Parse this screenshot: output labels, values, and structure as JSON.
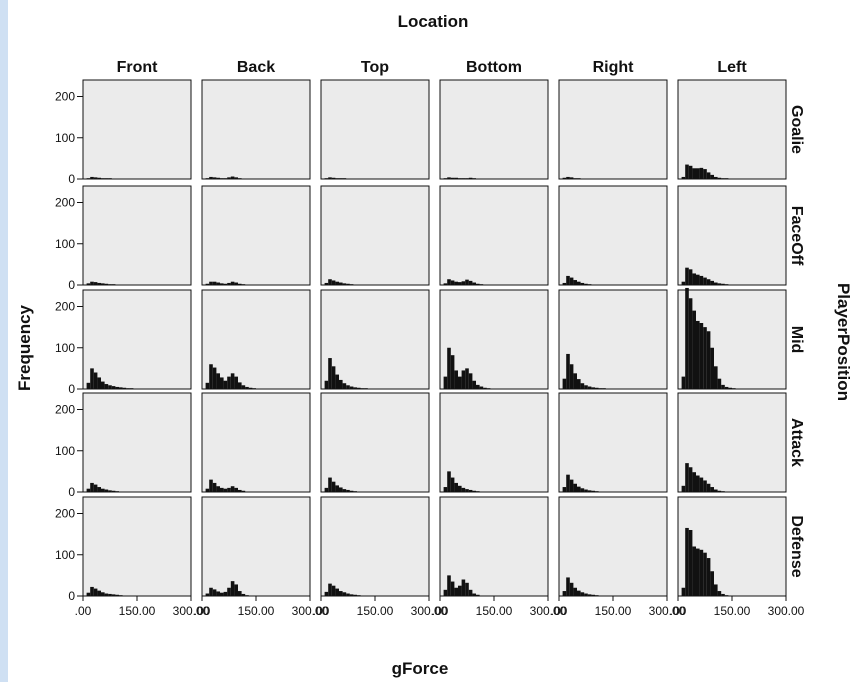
{
  "chart_data": {
    "type": "bar",
    "title": "Location",
    "xlabel": "gForce",
    "ylabel": "Frequency",
    "row_title": "PlayerPosition",
    "columns": [
      "Front",
      "Back",
      "Top",
      "Bottom",
      "Right",
      "Left"
    ],
    "rows": [
      "Goalie",
      "FaceOff",
      "Mid",
      "Attack",
      "Defense"
    ],
    "xlim": [
      0,
      300
    ],
    "ylim": [
      0,
      240
    ],
    "x_tick_labels": [
      ".00",
      "150.00",
      "300.00"
    ],
    "y_tick_labels": [
      "0",
      "100",
      "200"
    ],
    "grid": false,
    "bin_centers": [
      5,
      15,
      25,
      35,
      45,
      55,
      65,
      75,
      85,
      95,
      105,
      115,
      125,
      135,
      145,
      155,
      165,
      175,
      185,
      195,
      205,
      215,
      225,
      235,
      245,
      255,
      265,
      275,
      285,
      295
    ],
    "panels": [
      {
        "row": "Goalie",
        "column": "Front",
        "values": [
          0,
          2,
          5,
          4,
          3,
          2,
          2,
          2,
          1,
          1,
          1,
          1,
          1,
          0,
          0,
          0,
          0,
          0,
          0,
          0,
          0,
          0,
          0,
          0,
          0,
          0,
          0,
          0,
          0,
          0
        ]
      },
      {
        "row": "Goalie",
        "column": "Back",
        "values": [
          0,
          2,
          5,
          4,
          3,
          2,
          2,
          4,
          6,
          4,
          2,
          1,
          1,
          0,
          0,
          0,
          0,
          0,
          0,
          0,
          0,
          0,
          0,
          0,
          0,
          0,
          0,
          0,
          0,
          0
        ]
      },
      {
        "row": "Goalie",
        "column": "Top",
        "values": [
          0,
          2,
          4,
          3,
          2,
          2,
          2,
          1,
          1,
          1,
          1,
          1,
          0,
          0,
          0,
          0,
          0,
          0,
          0,
          0,
          0,
          0,
          0,
          0,
          0,
          0,
          0,
          0,
          0,
          0
        ]
      },
      {
        "row": "Goalie",
        "column": "Bottom",
        "values": [
          0,
          2,
          4,
          3,
          3,
          2,
          2,
          2,
          3,
          2,
          1,
          1,
          0,
          0,
          0,
          0,
          0,
          0,
          0,
          0,
          0,
          0,
          0,
          0,
          0,
          0,
          0,
          0,
          0,
          0
        ]
      },
      {
        "row": "Goalie",
        "column": "Right",
        "values": [
          0,
          3,
          5,
          4,
          2,
          2,
          1,
          1,
          1,
          1,
          0,
          0,
          0,
          0,
          0,
          0,
          0,
          0,
          0,
          0,
          0,
          0,
          0,
          0,
          0,
          0,
          0,
          0,
          0,
          0
        ]
      },
      {
        "row": "Goalie",
        "column": "Left",
        "values": [
          0,
          5,
          35,
          32,
          26,
          26,
          27,
          24,
          16,
          10,
          5,
          3,
          2,
          2,
          1,
          1,
          1,
          1,
          0,
          0,
          0,
          0,
          0,
          0,
          0,
          0,
          0,
          0,
          0,
          0
        ]
      },
      {
        "row": "FaceOff",
        "column": "Front",
        "values": [
          0,
          4,
          8,
          7,
          5,
          4,
          3,
          2,
          2,
          1,
          1,
          1,
          0,
          0,
          0,
          0,
          0,
          0,
          0,
          0,
          0,
          0,
          0,
          0,
          0,
          0,
          0,
          0,
          0,
          0
        ]
      },
      {
        "row": "FaceOff",
        "column": "Back",
        "values": [
          0,
          3,
          8,
          8,
          6,
          4,
          3,
          5,
          8,
          6,
          3,
          2,
          1,
          0,
          0,
          0,
          0,
          0,
          0,
          0,
          0,
          0,
          0,
          0,
          0,
          0,
          0,
          0,
          0,
          0
        ]
      },
      {
        "row": "FaceOff",
        "column": "Top",
        "values": [
          0,
          5,
          14,
          11,
          8,
          6,
          4,
          3,
          2,
          1,
          1,
          1,
          0,
          0,
          0,
          0,
          0,
          0,
          0,
          0,
          0,
          0,
          0,
          0,
          0,
          0,
          0,
          0,
          0,
          0
        ]
      },
      {
        "row": "FaceOff",
        "column": "Bottom",
        "values": [
          0,
          4,
          14,
          11,
          8,
          7,
          9,
          13,
          10,
          6,
          3,
          2,
          1,
          0,
          0,
          0,
          0,
          0,
          0,
          0,
          0,
          0,
          0,
          0,
          0,
          0,
          0,
          0,
          0,
          0
        ]
      },
      {
        "row": "FaceOff",
        "column": "Right",
        "values": [
          0,
          5,
          22,
          18,
          12,
          8,
          5,
          3,
          2,
          1,
          1,
          1,
          0,
          0,
          0,
          0,
          0,
          0,
          0,
          0,
          0,
          0,
          0,
          0,
          0,
          0,
          0,
          0,
          0,
          0
        ]
      },
      {
        "row": "FaceOff",
        "column": "Left",
        "values": [
          0,
          8,
          42,
          38,
          28,
          25,
          22,
          18,
          14,
          10,
          6,
          4,
          3,
          2,
          1,
          1,
          0,
          0,
          0,
          0,
          0,
          0,
          0,
          0,
          0,
          0,
          0,
          0,
          0,
          0
        ]
      },
      {
        "row": "Mid",
        "column": "Front",
        "values": [
          0,
          15,
          50,
          40,
          28,
          18,
          12,
          9,
          7,
          5,
          4,
          3,
          2,
          2,
          1,
          1,
          1,
          0,
          0,
          0,
          0,
          0,
          0,
          0,
          0,
          0,
          0,
          0,
          0,
          0
        ]
      },
      {
        "row": "Mid",
        "column": "Back",
        "values": [
          0,
          15,
          60,
          52,
          38,
          28,
          20,
          30,
          38,
          30,
          16,
          9,
          5,
          3,
          2,
          1,
          1,
          0,
          0,
          0,
          0,
          0,
          0,
          0,
          0,
          0,
          0,
          0,
          0,
          0
        ]
      },
      {
        "row": "Mid",
        "column": "Top",
        "values": [
          0,
          20,
          75,
          55,
          35,
          22,
          14,
          9,
          6,
          4,
          3,
          2,
          2,
          1,
          1,
          1,
          0,
          0,
          0,
          0,
          0,
          0,
          0,
          0,
          0,
          0,
          0,
          0,
          0,
          0
        ]
      },
      {
        "row": "Mid",
        "column": "Bottom",
        "values": [
          0,
          30,
          100,
          82,
          45,
          30,
          45,
          50,
          38,
          20,
          10,
          6,
          3,
          2,
          1,
          1,
          0,
          0,
          0,
          0,
          0,
          0,
          0,
          0,
          0,
          0,
          0,
          0,
          0,
          0
        ]
      },
      {
        "row": "Mid",
        "column": "Right",
        "values": [
          0,
          25,
          85,
          60,
          38,
          24,
          14,
          9,
          6,
          4,
          3,
          2,
          2,
          1,
          1,
          1,
          0,
          0,
          0,
          0,
          0,
          0,
          0,
          0,
          0,
          0,
          0,
          0,
          0,
          0
        ]
      },
      {
        "row": "Mid",
        "column": "Left",
        "values": [
          0,
          30,
          245,
          220,
          190,
          165,
          160,
          150,
          140,
          100,
          55,
          25,
          10,
          5,
          3,
          2,
          1,
          1,
          0,
          0,
          0,
          0,
          0,
          0,
          0,
          0,
          0,
          0,
          0,
          0
        ]
      },
      {
        "row": "Attack",
        "column": "Front",
        "values": [
          0,
          8,
          22,
          18,
          12,
          8,
          6,
          4,
          3,
          2,
          1,
          1,
          1,
          0,
          0,
          0,
          0,
          0,
          0,
          0,
          0,
          0,
          0,
          0,
          0,
          0,
          0,
          0,
          0,
          0
        ]
      },
      {
        "row": "Attack",
        "column": "Back",
        "values": [
          0,
          8,
          30,
          22,
          14,
          10,
          8,
          10,
          14,
          10,
          5,
          3,
          1,
          0,
          0,
          0,
          0,
          0,
          0,
          0,
          0,
          0,
          0,
          0,
          0,
          0,
          0,
          0,
          0,
          0
        ]
      },
      {
        "row": "Attack",
        "column": "Top",
        "values": [
          0,
          10,
          35,
          25,
          16,
          11,
          7,
          5,
          3,
          2,
          1,
          1,
          1,
          0,
          0,
          0,
          0,
          0,
          0,
          0,
          0,
          0,
          0,
          0,
          0,
          0,
          0,
          0,
          0,
          0
        ]
      },
      {
        "row": "Attack",
        "column": "Bottom",
        "values": [
          0,
          12,
          50,
          35,
          22,
          15,
          10,
          7,
          5,
          3,
          2,
          1,
          1,
          0,
          0,
          0,
          0,
          0,
          0,
          0,
          0,
          0,
          0,
          0,
          0,
          0,
          0,
          0,
          0,
          0
        ]
      },
      {
        "row": "Attack",
        "column": "Right",
        "values": [
          0,
          12,
          42,
          30,
          20,
          13,
          9,
          6,
          4,
          3,
          2,
          1,
          1,
          0,
          0,
          0,
          0,
          0,
          0,
          0,
          0,
          0,
          0,
          0,
          0,
          0,
          0,
          0,
          0,
          0
        ]
      },
      {
        "row": "Attack",
        "column": "Left",
        "values": [
          0,
          15,
          70,
          60,
          48,
          40,
          35,
          28,
          20,
          12,
          6,
          3,
          2,
          1,
          1,
          0,
          0,
          0,
          0,
          0,
          0,
          0,
          0,
          0,
          0,
          0,
          0,
          0,
          0,
          0
        ]
      },
      {
        "row": "Defense",
        "column": "Front",
        "values": [
          0,
          8,
          22,
          18,
          13,
          9,
          6,
          5,
          4,
          3,
          2,
          1,
          1,
          0,
          0,
          0,
          0,
          0,
          0,
          0,
          0,
          0,
          0,
          0,
          0,
          0,
          0,
          0,
          0,
          0
        ]
      },
      {
        "row": "Defense",
        "column": "Back",
        "values": [
          0,
          6,
          20,
          16,
          11,
          8,
          10,
          20,
          36,
          28,
          12,
          5,
          2,
          1,
          0,
          0,
          0,
          0,
          0,
          0,
          0,
          0,
          0,
          0,
          0,
          0,
          0,
          0,
          0,
          0
        ]
      },
      {
        "row": "Defense",
        "column": "Top",
        "values": [
          0,
          10,
          30,
          25,
          18,
          12,
          9,
          6,
          4,
          3,
          2,
          1,
          1,
          0,
          0,
          0,
          0,
          0,
          0,
          0,
          0,
          0,
          0,
          0,
          0,
          0,
          0,
          0,
          0,
          0
        ]
      },
      {
        "row": "Defense",
        "column": "Bottom",
        "values": [
          0,
          15,
          50,
          35,
          20,
          25,
          40,
          32,
          15,
          6,
          3,
          1,
          0,
          0,
          0,
          0,
          0,
          0,
          0,
          0,
          0,
          0,
          0,
          0,
          0,
          0,
          0,
          0,
          0,
          0
        ]
      },
      {
        "row": "Defense",
        "column": "Right",
        "values": [
          0,
          12,
          45,
          32,
          20,
          13,
          9,
          6,
          4,
          3,
          2,
          1,
          1,
          0,
          0,
          0,
          0,
          0,
          0,
          0,
          0,
          0,
          0,
          0,
          0,
          0,
          0,
          0,
          0,
          0
        ]
      },
      {
        "row": "Defense",
        "column": "Left",
        "values": [
          0,
          20,
          165,
          160,
          120,
          115,
          112,
          105,
          92,
          60,
          28,
          12,
          5,
          2,
          1,
          1,
          0,
          0,
          0,
          0,
          0,
          0,
          0,
          0,
          0,
          0,
          0,
          0,
          0,
          0
        ]
      }
    ]
  },
  "colors": {
    "panel_fill": "#ebebeb",
    "bar": "#111111",
    "outer_bg": "#cfe0f3"
  }
}
